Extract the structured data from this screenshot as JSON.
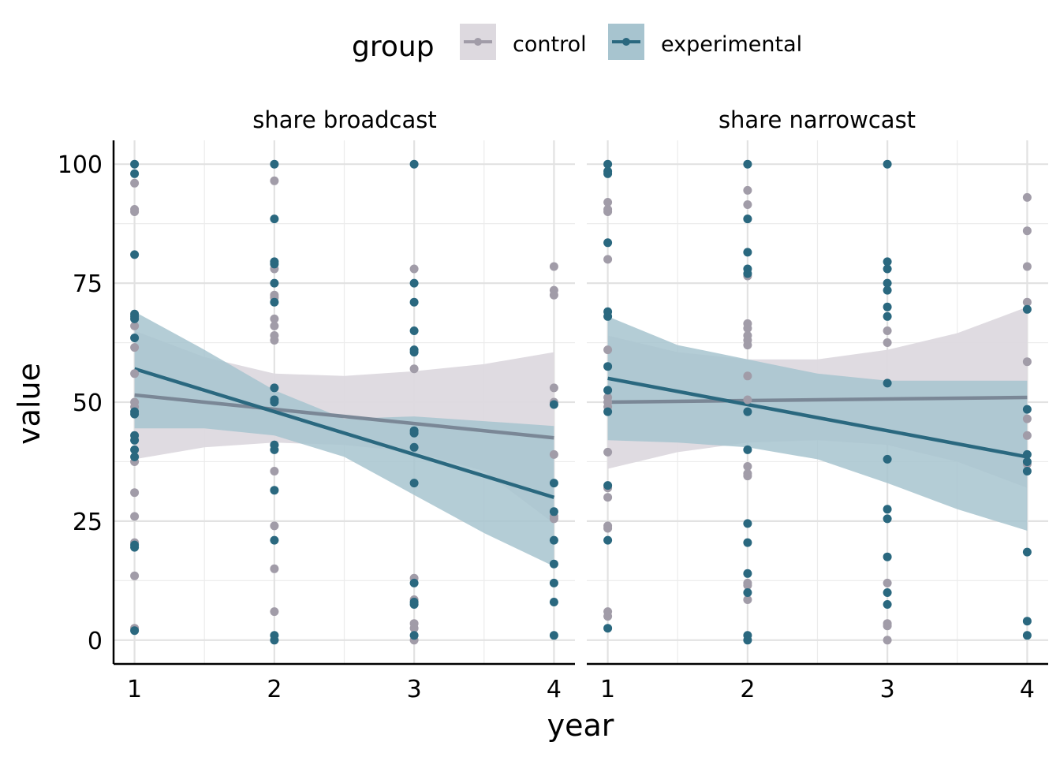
{
  "chart_data": {
    "type": "scatter",
    "xlabel": "year",
    "ylabel": "value",
    "xlim": [
      0.85,
      4.15
    ],
    "ylim": [
      -5,
      105
    ],
    "x_ticks": [
      1,
      2,
      3,
      4
    ],
    "y_ticks": [
      0,
      25,
      50,
      75,
      100
    ],
    "grid": true,
    "legend": {
      "title": "group",
      "position": "top",
      "entries": [
        {
          "name": "control",
          "color": "#a19ca8",
          "band_color": "#ddd9df"
        },
        {
          "name": "experimental",
          "color": "#2a687f",
          "band_color": "#a7c4cf"
        }
      ]
    },
    "panels": [
      {
        "title": "share broadcast",
        "series": [
          {
            "name": "control",
            "points": [
              [
                1,
                96
              ],
              [
                1,
                90.5
              ],
              [
                1,
                90
              ],
              [
                1,
                66
              ],
              [
                1,
                61.5
              ],
              [
                1,
                56
              ],
              [
                1,
                50
              ],
              [
                1,
                49
              ],
              [
                1,
                37.5
              ],
              [
                1,
                31
              ],
              [
                1,
                26
              ],
              [
                1,
                20.5
              ],
              [
                1,
                13.5
              ],
              [
                1,
                2.5
              ],
              [
                2,
                96.5
              ],
              [
                2,
                78
              ],
              [
                2,
                72.5
              ],
              [
                2,
                72
              ],
              [
                2,
                67.5
              ],
              [
                2,
                66
              ],
              [
                2,
                64
              ],
              [
                2,
                63
              ],
              [
                2,
                41
              ],
              [
                2,
                35.5
              ],
              [
                2,
                24
              ],
              [
                2,
                15
              ],
              [
                2,
                6
              ],
              [
                3,
                78
              ],
              [
                3,
                57
              ],
              [
                3,
                13
              ],
              [
                3,
                8.5
              ],
              [
                3,
                3.5
              ],
              [
                3,
                2.5
              ],
              [
                3,
                0
              ],
              [
                4,
                78.5
              ],
              [
                4,
                73.5
              ],
              [
                4,
                72.5
              ],
              [
                4,
                53
              ],
              [
                4,
                50
              ],
              [
                4,
                39
              ],
              [
                4,
                26
              ],
              [
                4,
                25.5
              ]
            ],
            "fit": {
              "x": [
                1,
                4
              ],
              "y": [
                51.5,
                42.5
              ]
            },
            "ci": {
              "x": [
                1,
                1.5,
                2,
                2.5,
                3,
                3.5,
                4
              ],
              "lower": [
                38,
                40.5,
                41.5,
                41,
                39.5,
                35.5,
                24.5
              ],
              "upper": [
                65,
                59.5,
                56,
                55.5,
                56.5,
                58,
                60.5
              ]
            }
          },
          {
            "name": "experimental",
            "points": [
              [
                1,
                100
              ],
              [
                1,
                98
              ],
              [
                1,
                81
              ],
              [
                1,
                68.5
              ],
              [
                1,
                68
              ],
              [
                1,
                67.5
              ],
              [
                1,
                63.5
              ],
              [
                1,
                48
              ],
              [
                1,
                47.5
              ],
              [
                1,
                43
              ],
              [
                1,
                42
              ],
              [
                1,
                40
              ],
              [
                1,
                38.5
              ],
              [
                1,
                20
              ],
              [
                1,
                19.5
              ],
              [
                1,
                2
              ],
              [
                2,
                100
              ],
              [
                2,
                88.5
              ],
              [
                2,
                79.5
              ],
              [
                2,
                79
              ],
              [
                2,
                75
              ],
              [
                2,
                71
              ],
              [
                2,
                53
              ],
              [
                2,
                50.5
              ],
              [
                2,
                50
              ],
              [
                2,
                41
              ],
              [
                2,
                40
              ],
              [
                2,
                31.5
              ],
              [
                2,
                21
              ],
              [
                2,
                1
              ],
              [
                2,
                0
              ],
              [
                3,
                100
              ],
              [
                3,
                75
              ],
              [
                3,
                71
              ],
              [
                3,
                65
              ],
              [
                3,
                61
              ],
              [
                3,
                60.5
              ],
              [
                3,
                44
              ],
              [
                3,
                43.5
              ],
              [
                3,
                40.5
              ],
              [
                3,
                33
              ],
              [
                3,
                12
              ],
              [
                3,
                8
              ],
              [
                3,
                7.5
              ],
              [
                3,
                1
              ],
              [
                4,
                49.5
              ],
              [
                4,
                33
              ],
              [
                4,
                27
              ],
              [
                4,
                21
              ],
              [
                4,
                16
              ],
              [
                4,
                12
              ],
              [
                4,
                8
              ],
              [
                4,
                1
              ]
            ],
            "fit": {
              "x": [
                1,
                4
              ],
              "y": [
                57,
                30
              ]
            },
            "ci": {
              "x": [
                1,
                1.5,
                2,
                2.5,
                3,
                3.5,
                4
              ],
              "lower": [
                44.5,
                44.5,
                43,
                38.5,
                30.5,
                22.5,
                15.5
              ],
              "upper": [
                69,
                61,
                52.5,
                46.5,
                47,
                46,
                45
              ]
            }
          }
        ]
      },
      {
        "title": "share narrowcast",
        "series": [
          {
            "name": "control",
            "points": [
              [
                1,
                92
              ],
              [
                1,
                90.5
              ],
              [
                1,
                90
              ],
              [
                1,
                80
              ],
              [
                1,
                61
              ],
              [
                1,
                51
              ],
              [
                1,
                50
              ],
              [
                1,
                49
              ],
              [
                1,
                39.5
              ],
              [
                1,
                32
              ],
              [
                1,
                30
              ],
              [
                1,
                24
              ],
              [
                1,
                23.5
              ],
              [
                1,
                6
              ],
              [
                1,
                5
              ],
              [
                2,
                94.5
              ],
              [
                2,
                91.5
              ],
              [
                2,
                88.5
              ],
              [
                2,
                76.5
              ],
              [
                2,
                66.5
              ],
              [
                2,
                65.5
              ],
              [
                2,
                64
              ],
              [
                2,
                63
              ],
              [
                2,
                62
              ],
              [
                2,
                55.5
              ],
              [
                2,
                50.5
              ],
              [
                2,
                36.5
              ],
              [
                2,
                35
              ],
              [
                2,
                34.5
              ],
              [
                2,
                12
              ],
              [
                2,
                11.5
              ],
              [
                2,
                8.5
              ],
              [
                3,
                65
              ],
              [
                3,
                62.5
              ],
              [
                3,
                12
              ],
              [
                3,
                3.5
              ],
              [
                3,
                3
              ],
              [
                3,
                0
              ],
              [
                4,
                93
              ],
              [
                4,
                86
              ],
              [
                4,
                78.5
              ],
              [
                4,
                71
              ],
              [
                4,
                58.5
              ],
              [
                4,
                46.5
              ],
              [
                4,
                43
              ],
              [
                4,
                37
              ]
            ],
            "fit": {
              "x": [
                1,
                4
              ],
              "y": [
                50,
                51
              ]
            },
            "ci": {
              "x": [
                1,
                1.5,
                2,
                2.5,
                3,
                3.5,
                4
              ],
              "lower": [
                36,
                39.5,
                41.5,
                42,
                41,
                37.5,
                32
              ],
              "upper": [
                64,
                60.5,
                59,
                59,
                61,
                64.5,
                70
              ]
            }
          },
          {
            "name": "experimental",
            "points": [
              [
                1,
                100
              ],
              [
                1,
                98.5
              ],
              [
                1,
                98
              ],
              [
                1,
                83.5
              ],
              [
                1,
                69
              ],
              [
                1,
                68
              ],
              [
                1,
                57.5
              ],
              [
                1,
                52.5
              ],
              [
                1,
                48
              ],
              [
                1,
                32.5
              ],
              [
                1,
                21
              ],
              [
                1,
                2.5
              ],
              [
                2,
                100
              ],
              [
                2,
                88.5
              ],
              [
                2,
                81.5
              ],
              [
                2,
                78
              ],
              [
                2,
                77
              ],
              [
                2,
                48
              ],
              [
                2,
                40
              ],
              [
                2,
                24.5
              ],
              [
                2,
                20.5
              ],
              [
                2,
                14
              ],
              [
                2,
                10
              ],
              [
                2,
                1
              ],
              [
                2,
                0
              ],
              [
                3,
                100
              ],
              [
                3,
                79.5
              ],
              [
                3,
                78
              ],
              [
                3,
                75
              ],
              [
                3,
                73.5
              ],
              [
                3,
                70
              ],
              [
                3,
                68
              ],
              [
                3,
                54
              ],
              [
                3,
                38
              ],
              [
                3,
                27.5
              ],
              [
                3,
                25.5
              ],
              [
                3,
                17.5
              ],
              [
                3,
                10
              ],
              [
                3,
                7.5
              ],
              [
                4,
                69.5
              ],
              [
                4,
                48.5
              ],
              [
                4,
                39
              ],
              [
                4,
                37.5
              ],
              [
                4,
                35.5
              ],
              [
                4,
                18.5
              ],
              [
                4,
                4
              ],
              [
                4,
                1
              ]
            ],
            "fit": {
              "x": [
                1,
                4
              ],
              "y": [
                55,
                38.5
              ]
            },
            "ci": {
              "x": [
                1,
                1.5,
                2,
                2.5,
                3,
                3.5,
                4
              ],
              "lower": [
                42,
                41.5,
                40.5,
                38,
                33,
                27.5,
                23
              ],
              "upper": [
                68,
                62,
                59,
                56,
                54.5,
                54.5,
                54.5
              ]
            }
          }
        ]
      }
    ]
  }
}
